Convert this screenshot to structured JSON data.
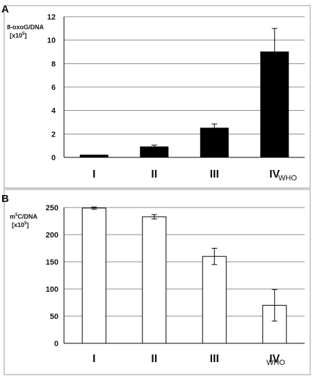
{
  "chart_data": [
    {
      "panel": "A",
      "type": "bar",
      "ylabel_line1": "8-oxoG/DNA",
      "ylabel_line2": "[x10",
      "ylabel_sup": "5",
      "ylabel_close": "]",
      "xunit": "WHO",
      "categories": [
        "I",
        "II",
        "III",
        "IV"
      ],
      "values": [
        0.2,
        0.9,
        2.5,
        9.0
      ],
      "errors": [
        0.0,
        0.15,
        0.35,
        2.0
      ],
      "ylim": [
        0,
        12
      ],
      "yticks": [
        0,
        2,
        4,
        6,
        8,
        10,
        12
      ],
      "bar_color": "#000000",
      "grid": true
    },
    {
      "panel": "B",
      "type": "bar",
      "ylabel_line1": "m",
      "ylabel_sup1": "5",
      "ylabel_line1b": "C/DNA",
      "ylabel_line2": "[x10",
      "ylabel_sup": "5",
      "ylabel_close": "]",
      "xunit": "WHO",
      "categories": [
        "I",
        "II",
        "III",
        "IV"
      ],
      "values": [
        249,
        233,
        160,
        70
      ],
      "errors": [
        2,
        4,
        15,
        29
      ],
      "ylim": [
        0,
        250
      ],
      "yticks": [
        0,
        50,
        100,
        150,
        200,
        250
      ],
      "bar_color": "#ffffff",
      "grid": true
    }
  ]
}
